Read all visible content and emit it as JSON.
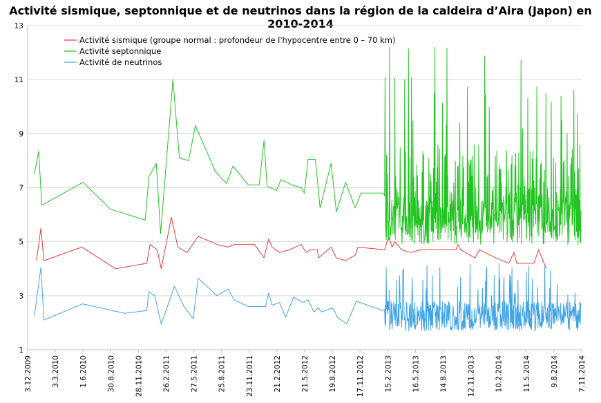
{
  "chart_data": {
    "type": "line",
    "title": "Activité sismique, septonnique et de neutrinos dans la région de la caldeira d’Aira (Japon) en 2010-2014",
    "xlabel": "",
    "ylabel": "",
    "ylim": [
      1,
      13
    ],
    "yticks": [
      1,
      3,
      5,
      7,
      9,
      11,
      13
    ],
    "xlim": [
      "2009-12-03",
      "2014-11-07"
    ],
    "xticks": [
      "3.12.2009",
      "3.3.2010",
      "1.6.2010",
      "30.8.2010",
      "28.11.2010",
      "26.2.2011",
      "27.5.2011",
      "25.8.2011",
      "23.11.2011",
      "21.2.2012",
      "21.5.2012",
      "19.8.2012",
      "17.11.2012",
      "15.2.2013",
      "16.5.2013",
      "14.8.2013",
      "12.11.2013",
      "10.2.2014",
      "11.5.2014",
      "9.8.2014",
      "7.11.2014"
    ],
    "grid": "horizontal",
    "legend_position": "top-left",
    "series": [
      {
        "name": "Activité sismique (groupe normal : profondeur de l'hypocentre entre 0 – 70 km)",
        "color": "#e8383d",
        "points": [
          [
            "2010-01-01",
            4.3
          ],
          [
            "2010-01-15",
            5.5
          ],
          [
            "2010-01-25",
            4.3
          ],
          [
            "2010-05-28",
            4.8
          ],
          [
            "2010-09-15",
            4.0
          ],
          [
            "2010-12-25",
            4.2
          ],
          [
            "2011-01-05",
            4.9
          ],
          [
            "2011-01-28",
            4.7
          ],
          [
            "2011-02-10",
            4.0
          ],
          [
            "2011-03-15",
            5.9
          ],
          [
            "2011-04-05",
            4.8
          ],
          [
            "2011-05-05",
            4.6
          ],
          [
            "2011-06-10",
            5.2
          ],
          [
            "2011-08-10",
            4.9
          ],
          [
            "2011-09-15",
            4.8
          ],
          [
            "2011-10-05",
            4.9
          ],
          [
            "2011-12-10",
            4.9
          ],
          [
            "2012-01-10",
            4.4
          ],
          [
            "2012-01-25",
            5.1
          ],
          [
            "2012-02-05",
            4.8
          ],
          [
            "2012-03-01",
            4.6
          ],
          [
            "2012-04-01",
            4.7
          ],
          [
            "2012-05-10",
            4.9
          ],
          [
            "2012-05-25",
            4.6
          ],
          [
            "2012-06-08",
            4.7
          ],
          [
            "2012-07-01",
            4.7
          ],
          [
            "2012-07-05",
            4.4
          ],
          [
            "2012-08-15",
            4.8
          ],
          [
            "2012-09-01",
            4.4
          ],
          [
            "2012-10-01",
            4.3
          ],
          [
            "2012-11-01",
            4.5
          ],
          [
            "2012-11-10",
            4.8
          ],
          [
            "2013-02-05",
            4.7
          ],
          [
            "2013-02-18",
            5.2
          ],
          [
            "2013-03-01",
            4.8
          ],
          [
            "2013-03-10",
            5.0
          ],
          [
            "2013-04-01",
            4.7
          ],
          [
            "2013-05-01",
            4.6
          ],
          [
            "2013-06-01",
            4.7
          ],
          [
            "2013-09-25",
            4.7
          ],
          [
            "2013-10-01",
            4.9
          ],
          [
            "2013-10-10",
            4.7
          ],
          [
            "2013-11-25",
            4.4
          ],
          [
            "2013-12-10",
            4.7
          ],
          [
            "2014-02-01",
            4.4
          ],
          [
            "2014-03-15",
            4.2
          ],
          [
            "2014-04-01",
            4.6
          ],
          [
            "2014-04-10",
            4.2
          ],
          [
            "2014-05-20",
            4.2
          ],
          [
            "2014-06-05",
            4.2
          ],
          [
            "2014-06-20",
            4.7
          ],
          [
            "2014-07-15",
            4.0
          ]
        ]
      },
      {
        "name": "Activité septonnique",
        "color": "#22c422",
        "points": [
          [
            "2009-12-25",
            7.5
          ],
          [
            "2010-01-08",
            8.35
          ],
          [
            "2010-01-18",
            6.35
          ],
          [
            "2010-06-01",
            7.2
          ],
          [
            "2010-08-30",
            6.2
          ],
          [
            "2010-12-20",
            5.8
          ],
          [
            "2011-01-01",
            7.4
          ],
          [
            "2011-01-25",
            7.9
          ],
          [
            "2011-02-08",
            5.3
          ],
          [
            "2011-03-20",
            11.0
          ],
          [
            "2011-04-10",
            8.1
          ],
          [
            "2011-05-10",
            8.0
          ],
          [
            "2011-06-01",
            9.3
          ],
          [
            "2011-08-05",
            7.6
          ],
          [
            "2011-09-10",
            7.15
          ],
          [
            "2011-10-01",
            7.8
          ],
          [
            "2011-11-20",
            7.1
          ],
          [
            "2011-12-25",
            7.1
          ],
          [
            "2012-01-10",
            8.75
          ],
          [
            "2012-01-20",
            7.05
          ],
          [
            "2012-02-20",
            6.9
          ],
          [
            "2012-03-05",
            7.3
          ],
          [
            "2012-04-10",
            7.1
          ],
          [
            "2012-05-10",
            7.0
          ],
          [
            "2012-05-20",
            6.8
          ],
          [
            "2012-06-01",
            8.05
          ],
          [
            "2012-06-25",
            8.05
          ],
          [
            "2012-07-10",
            6.25
          ],
          [
            "2012-08-15",
            7.9
          ],
          [
            "2012-09-01",
            6.1
          ],
          [
            "2012-10-01",
            7.2
          ],
          [
            "2012-11-01",
            6.25
          ],
          [
            "2012-11-20",
            6.8
          ],
          [
            "2013-02-01",
            6.8
          ],
          [
            "2013-02-05",
            6.7
          ]
        ],
        "dense_segment": {
          "start": "2013-02-05",
          "end": "2014-11-05",
          "min": 4.9,
          "max": 12.3
        }
      },
      {
        "name": "Activité de neutrinos",
        "color": "#42a4e6",
        "points": [
          [
            "2009-12-25",
            2.25
          ],
          [
            "2010-01-15",
            4.05
          ],
          [
            "2010-01-25",
            2.1
          ],
          [
            "2010-05-30",
            2.7
          ],
          [
            "2010-10-15",
            2.35
          ],
          [
            "2010-12-25",
            2.45
          ],
          [
            "2011-01-01",
            3.15
          ],
          [
            "2011-01-20",
            3.0
          ],
          [
            "2011-02-10",
            1.95
          ],
          [
            "2011-03-25",
            3.35
          ],
          [
            "2011-04-25",
            2.6
          ],
          [
            "2011-05-25",
            2.15
          ],
          [
            "2011-06-10",
            3.65
          ],
          [
            "2011-08-10",
            3.0
          ],
          [
            "2011-09-15",
            3.25
          ],
          [
            "2011-10-05",
            2.85
          ],
          [
            "2011-11-20",
            2.6
          ],
          [
            "2012-01-15",
            2.6
          ],
          [
            "2012-01-25",
            3.1
          ],
          [
            "2012-02-05",
            2.65
          ],
          [
            "2012-03-01",
            2.75
          ],
          [
            "2012-03-20",
            2.2
          ],
          [
            "2012-04-15",
            2.95
          ],
          [
            "2012-05-15",
            2.75
          ],
          [
            "2012-06-01",
            2.85
          ],
          [
            "2012-06-20",
            2.4
          ],
          [
            "2012-07-05",
            2.55
          ],
          [
            "2012-07-15",
            2.4
          ],
          [
            "2012-08-20",
            2.55
          ],
          [
            "2012-09-05",
            2.2
          ],
          [
            "2012-10-05",
            1.95
          ],
          [
            "2012-11-05",
            2.8
          ],
          [
            "2013-01-30",
            2.45
          ],
          [
            "2013-02-05",
            2.5
          ]
        ],
        "dense_segment": {
          "start": "2013-02-05",
          "end": "2014-11-05",
          "min": 1.7,
          "max": 4.2
        }
      }
    ]
  }
}
